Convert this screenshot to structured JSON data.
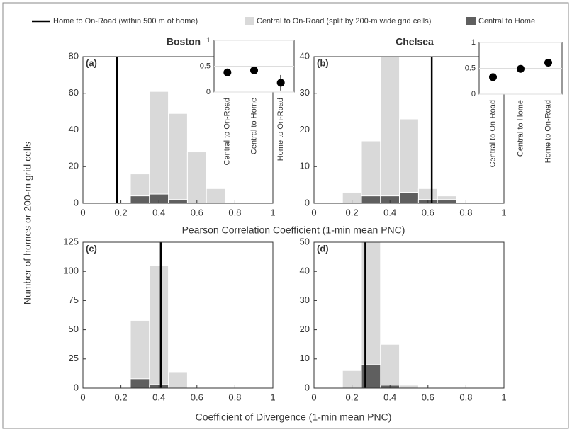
{
  "legend": [
    {
      "name": "Home to On-Road (within 500 m of home)",
      "color": "#000000"
    },
    {
      "name": "Central to On-Road (split by 200-m wide grid cells)",
      "color": "#d9d9d9"
    },
    {
      "name": "Central to Home",
      "color": "#5f5f5f"
    }
  ],
  "ylabel": "Number of homes or 200-m grid cells",
  "chart_data": [
    {
      "type": "histogram",
      "title": "Boston",
      "panel": "(a)",
      "xlabel": "Pearson Correlation Coefficient (1-min mean PNC)",
      "bins": [
        0.25,
        0.35,
        0.45,
        0.55,
        0.65,
        0.75
      ],
      "series": [
        {
          "values": [
            16,
            61,
            49,
            28,
            8
          ]
        },
        {
          "values": [
            4,
            5,
            2,
            0,
            0
          ]
        }
      ],
      "vline": 0.18,
      "xlim": [
        0,
        1
      ],
      "xticks": [
        0,
        0.2,
        0.4,
        0.6,
        0.8,
        1
      ],
      "ylim": [
        0,
        80
      ],
      "yticks": [
        0,
        20,
        40,
        60,
        80
      ]
    },
    {
      "type": "histogram",
      "title": "Chelsea",
      "panel": "(b)",
      "bins": [
        0.15,
        0.25,
        0.35,
        0.45,
        0.55,
        0.65,
        0.75
      ],
      "series": [
        {
          "values": [
            3,
            17,
            40,
            23,
            4,
            2
          ]
        },
        {
          "values": [
            0,
            2,
            2,
            3,
            1,
            1
          ]
        }
      ],
      "vline": 0.62,
      "xlim": [
        0,
        1
      ],
      "xticks": [
        0,
        0.2,
        0.4,
        0.6,
        0.8,
        1
      ],
      "ylim": [
        0,
        40
      ],
      "yticks": [
        0,
        10,
        20,
        30,
        40
      ]
    },
    {
      "type": "histogram",
      "panel": "(c)",
      "xlabel": "Coefficient of Divergence (1-min mean PNC)",
      "bins": [
        0.25,
        0.35,
        0.45,
        0.55
      ],
      "series": [
        {
          "values": [
            58,
            105,
            14
          ]
        },
        {
          "values": [
            8,
            3,
            0
          ]
        }
      ],
      "vline": 0.41,
      "xlim": [
        0,
        1
      ],
      "xticks": [
        0,
        0.2,
        0.4,
        0.6,
        0.8,
        1
      ],
      "ylim": [
        0,
        125
      ],
      "yticks": [
        0,
        25,
        50,
        75,
        100,
        125
      ]
    },
    {
      "type": "histogram",
      "panel": "(d)",
      "bins": [
        0.15,
        0.25,
        0.35,
        0.45,
        0.55
      ],
      "series": [
        {
          "values": [
            6,
            50,
            15,
            1
          ]
        },
        {
          "values": [
            0,
            8,
            1,
            0
          ]
        }
      ],
      "vline": 0.27,
      "xlim": [
        0,
        1
      ],
      "xticks": [
        0,
        0.2,
        0.4,
        0.6,
        0.8,
        1
      ],
      "ylim": [
        0,
        50
      ],
      "yticks": [
        0,
        10,
        20,
        30,
        40,
        50
      ]
    },
    {
      "type": "scatter",
      "categories": [
        "Central to On-Road",
        "Central to Home",
        "Home to On-Road"
      ],
      "values": [
        0.38,
        0.42,
        0.18
      ],
      "errors": [
        0.02,
        0.02,
        0.15
      ],
      "color": "#000000",
      "ylim": [
        0,
        1
      ],
      "yticks": [
        0,
        0.5,
        1
      ]
    },
    {
      "type": "scatter",
      "categories": [
        "Central to On-Road",
        "Central to Home",
        "Home to On-Road"
      ],
      "values": [
        0.33,
        0.49,
        0.61
      ],
      "errors": [
        0.03,
        0.03,
        0.05
      ],
      "color": "#000000",
      "ylim": [
        0,
        1
      ],
      "yticks": [
        0,
        0.5,
        1
      ]
    }
  ]
}
